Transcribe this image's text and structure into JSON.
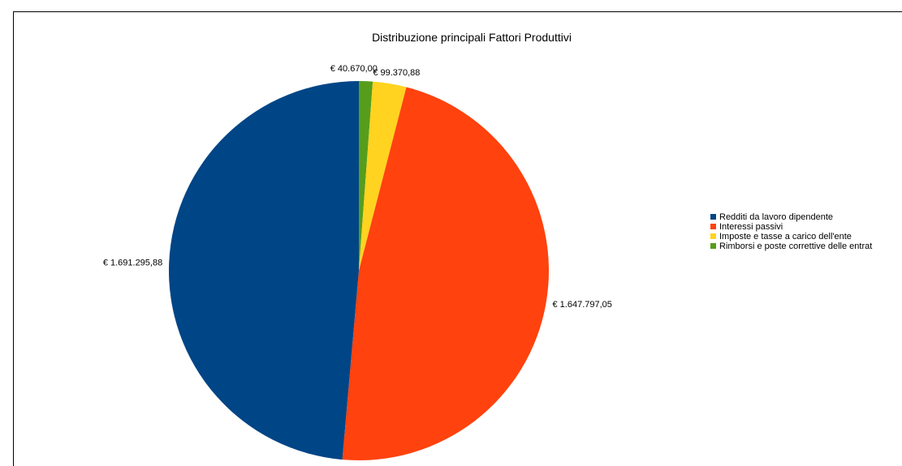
{
  "chart_data": {
    "type": "pie",
    "title": "Distribuzione principali Fattori Produttivi",
    "categories": [
      "Redditi da lavoro dipendente",
      "Interessi passivi",
      "Imposte e tasse a carico dell'ente",
      "Rimborsi e poste correttive delle entrat"
    ],
    "values": [
      1691295.88,
      1647797.05,
      99370.88,
      40670.0
    ],
    "value_labels": [
      "€ 1.691.295,88",
      "€ 1.647.797,05",
      "€ 99.370,88",
      "€ 40.670,00"
    ],
    "colors": [
      "#004586",
      "#ff420e",
      "#ffd320",
      "#579d1c"
    ],
    "legend_position": "right"
  }
}
